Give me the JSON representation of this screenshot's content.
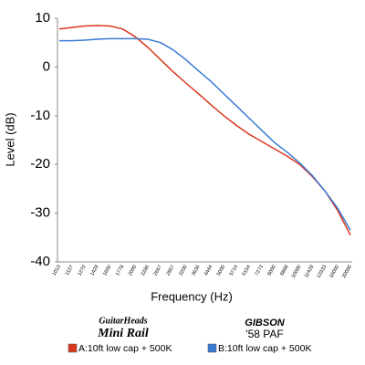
{
  "chart_data": {
    "type": "line",
    "x_label": "Frequency (Hz)",
    "y_label": "Level (dB)",
    "categories": [
      "1013",
      "1127",
      "1270",
      "1429",
      "1600",
      "1778",
      "2000",
      "2286",
      "2667",
      "2857",
      "3200",
      "3636",
      "4444",
      "5000",
      "5714",
      "6154",
      "7273",
      "8000",
      "8889",
      "10000",
      "11429",
      "13333",
      "16000",
      "20000"
    ],
    "series": [
      {
        "name": "A:10ft low cap + 500K",
        "color": "#d9381e",
        "values": [
          7.8,
          8.1,
          8.4,
          8.5,
          8.4,
          7.8,
          6.2,
          4.0,
          1.5,
          -1.0,
          -3.3,
          -5.5,
          -7.8,
          -10.0,
          -12.0,
          -13.8,
          -15.3,
          -16.8,
          -18.3,
          -20.0,
          -22.5,
          -25.5,
          -29.5,
          -34.5
        ]
      },
      {
        "name": "B:10ft low cap + 500K",
        "color": "#3a7bd5",
        "values": [
          5.4,
          5.4,
          5.5,
          5.7,
          5.8,
          5.8,
          5.8,
          5.7,
          5.0,
          3.5,
          1.5,
          -0.8,
          -3.0,
          -5.5,
          -8.0,
          -10.5,
          -13.0,
          -15.5,
          -17.5,
          -19.7,
          -22.3,
          -25.5,
          -29.0,
          -33.5
        ]
      }
    ],
    "ylim": [
      -40,
      10
    ],
    "yticks": [
      -40,
      -30,
      -20,
      -10,
      0,
      10
    ],
    "logos": [
      {
        "brand": "GuitarHeads",
        "model": "Mini Rail"
      },
      {
        "brand": "GIBSON",
        "model": "'58 PAF"
      }
    ]
  }
}
